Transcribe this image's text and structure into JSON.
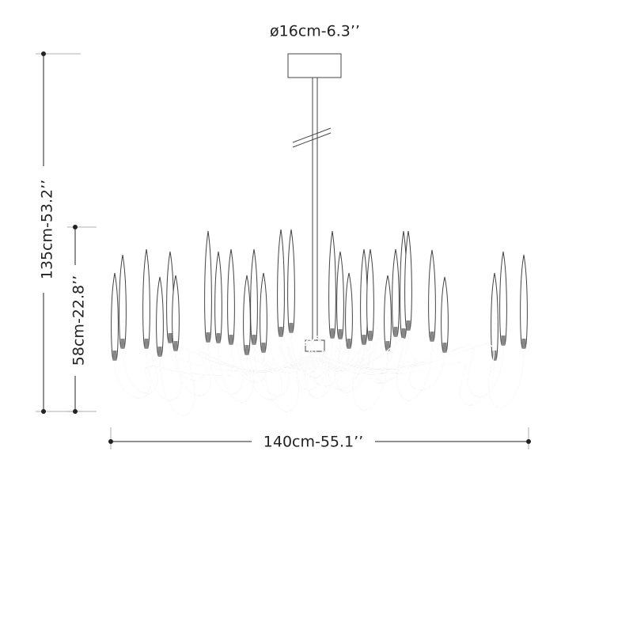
{
  "dimensions": {
    "canopy_diameter": "ø16cm-6.3’’",
    "total_height": "135cm-53.2’’",
    "body_height": "58cm-22.8’’",
    "width": "140cm-55.1’’"
  }
}
